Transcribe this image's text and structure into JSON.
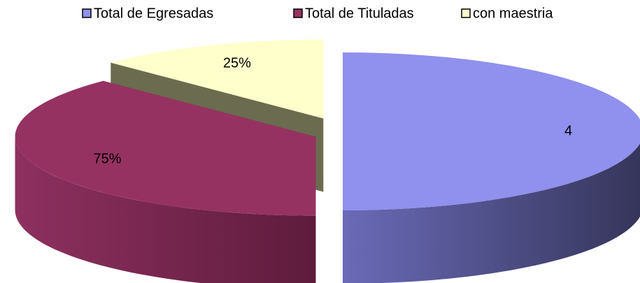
{
  "chart_data": {
    "type": "pie3d",
    "categories": [
      "Total de Egresadas",
      "Total de Tituladas",
      "con maestria"
    ],
    "values": [
      4,
      3,
      1
    ],
    "data_labels": [
      "4",
      "75%",
      "25%"
    ],
    "colors": [
      "#9090ee",
      "#963262",
      "#ffffcc"
    ],
    "legend": "top"
  }
}
